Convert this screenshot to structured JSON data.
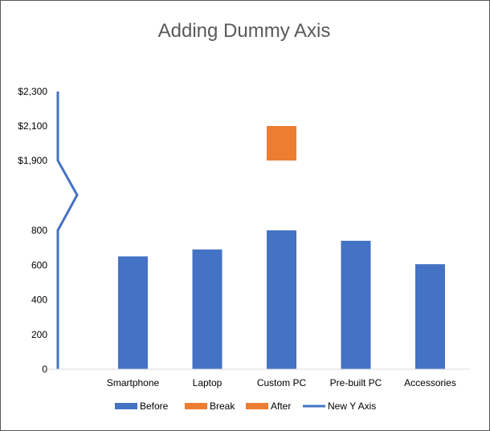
{
  "chart_data": {
    "type": "bar",
    "title": "Adding Dummy Axis",
    "xlabel": "",
    "ylabel": "",
    "categories": [
      "Smartphone",
      "Laptop",
      "Custom PC",
      "Pre-built PC",
      "Accessories"
    ],
    "series": [
      {
        "name": "Before",
        "kind": "bar",
        "color": "#4472C4",
        "values": [
          650,
          690,
          800,
          740,
          605
        ]
      },
      {
        "name": "Break",
        "kind": "bar",
        "color": "#ED7D31",
        "values": [
          null,
          null,
          null,
          null,
          null
        ]
      },
      {
        "name": "After",
        "kind": "bar",
        "color": "#ED7D31",
        "values": [
          null,
          null,
          [
            1900,
            2100
          ],
          null,
          null
        ]
      },
      {
        "name": "New Y Axis",
        "kind": "line",
        "color": "#4472C4"
      }
    ],
    "y_ticks_lower": [
      0,
      200,
      400,
      600,
      800
    ],
    "y_ticks_upper": [
      "$1,900",
      "$2,100",
      "$2,300"
    ],
    "ylim_lower": [
      0,
      800
    ],
    "ylim_upper": [
      1900,
      2300
    ],
    "axis_break": true,
    "grid": false,
    "legend_position": "bottom"
  }
}
